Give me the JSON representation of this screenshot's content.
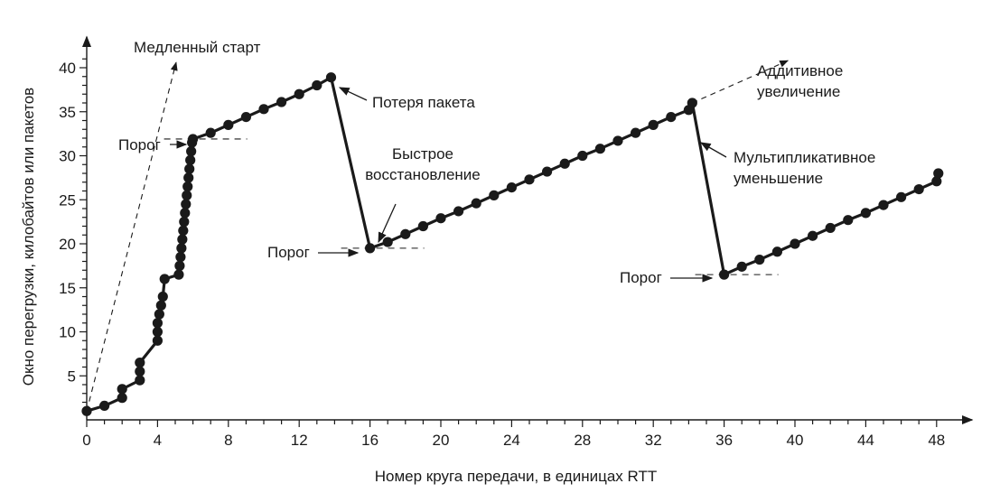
{
  "chart_data": {
    "type": "line",
    "title": "",
    "xlabel": "Номер круга передачи, в единицах RTT",
    "ylabel": "Окно перегрузки, килобайтов или пакетов",
    "xlim": [
      0,
      49.5
    ],
    "ylim": [
      0,
      43
    ],
    "x_ticks": [
      "0",
      "4",
      "8",
      "12",
      "16",
      "20",
      "24",
      "28",
      "32",
      "36",
      "40",
      "44",
      "48"
    ],
    "y_ticks": [
      "5",
      "10",
      "15",
      "20",
      "25",
      "30",
      "35",
      "40"
    ],
    "grid": false,
    "series": [
      {
        "points": [
          [
            0,
            1
          ],
          [
            1,
            1.6
          ],
          [
            2,
            2.5
          ],
          [
            2,
            3.5
          ],
          [
            3,
            4.5
          ],
          [
            3,
            5.5
          ],
          [
            3,
            6.5
          ],
          [
            4,
            9
          ],
          [
            4,
            10
          ],
          [
            4,
            11
          ],
          [
            4.1,
            12
          ],
          [
            4.2,
            13
          ],
          [
            4.3,
            14
          ],
          [
            4.4,
            16
          ],
          [
            5.2,
            16.5
          ],
          [
            5.25,
            17.5
          ],
          [
            5.3,
            18.5
          ],
          [
            5.35,
            19.5
          ],
          [
            5.4,
            20.5
          ],
          [
            5.45,
            21.5
          ],
          [
            5.5,
            22.5
          ],
          [
            5.55,
            23.5
          ],
          [
            5.6,
            24.5
          ],
          [
            5.65,
            25.5
          ],
          [
            5.7,
            26.5
          ],
          [
            5.75,
            27.5
          ],
          [
            5.8,
            28.5
          ],
          [
            5.85,
            29.5
          ],
          [
            5.9,
            30.5
          ],
          [
            5.95,
            31.5
          ],
          [
            6,
            31.9
          ],
          [
            7,
            32.6
          ],
          [
            8,
            33.5
          ],
          [
            9,
            34.4
          ],
          [
            10,
            35.3
          ],
          [
            11,
            36.1
          ],
          [
            12,
            37
          ],
          [
            13,
            38
          ],
          [
            13.8,
            38.9
          ],
          [
            16,
            19.5
          ],
          [
            17,
            20.2
          ],
          [
            18,
            21.1
          ],
          [
            19,
            22
          ],
          [
            20,
            22.9
          ],
          [
            21,
            23.7
          ],
          [
            22,
            24.6
          ],
          [
            23,
            25.5
          ],
          [
            24,
            26.4
          ],
          [
            25,
            27.3
          ],
          [
            26,
            28.2
          ],
          [
            27,
            29.1
          ],
          [
            28,
            30
          ],
          [
            29,
            30.8
          ],
          [
            30,
            31.7
          ],
          [
            31,
            32.6
          ],
          [
            32,
            33.5
          ],
          [
            33,
            34.4
          ],
          [
            34,
            35.2
          ],
          [
            34.2,
            36
          ],
          [
            36,
            16.5
          ],
          [
            37,
            17.4
          ],
          [
            38,
            18.2
          ],
          [
            39,
            19.1
          ],
          [
            40,
            20
          ],
          [
            41,
            20.9
          ],
          [
            42,
            21.8
          ],
          [
            43,
            22.7
          ],
          [
            44,
            23.5
          ],
          [
            45,
            24.4
          ],
          [
            46,
            25.3
          ],
          [
            47,
            26.2
          ],
          [
            48,
            27.1
          ],
          [
            48.1,
            28
          ]
        ]
      }
    ],
    "annotations": {
      "slow_start": "Медленный старт",
      "packet_loss": "Потеря пакета",
      "fast_recovery": "Быстрое\nвосстановление",
      "additive_increase": "Аддитивное\nувеличение",
      "multiplicative_decrease": "Мультипликативное\nуменьшение",
      "threshold": "Порог"
    },
    "thresholds": [
      {
        "x": 6,
        "y": 31.9
      },
      {
        "x": 16,
        "y": 19.5
      },
      {
        "x": 36,
        "y": 16.5
      }
    ]
  }
}
